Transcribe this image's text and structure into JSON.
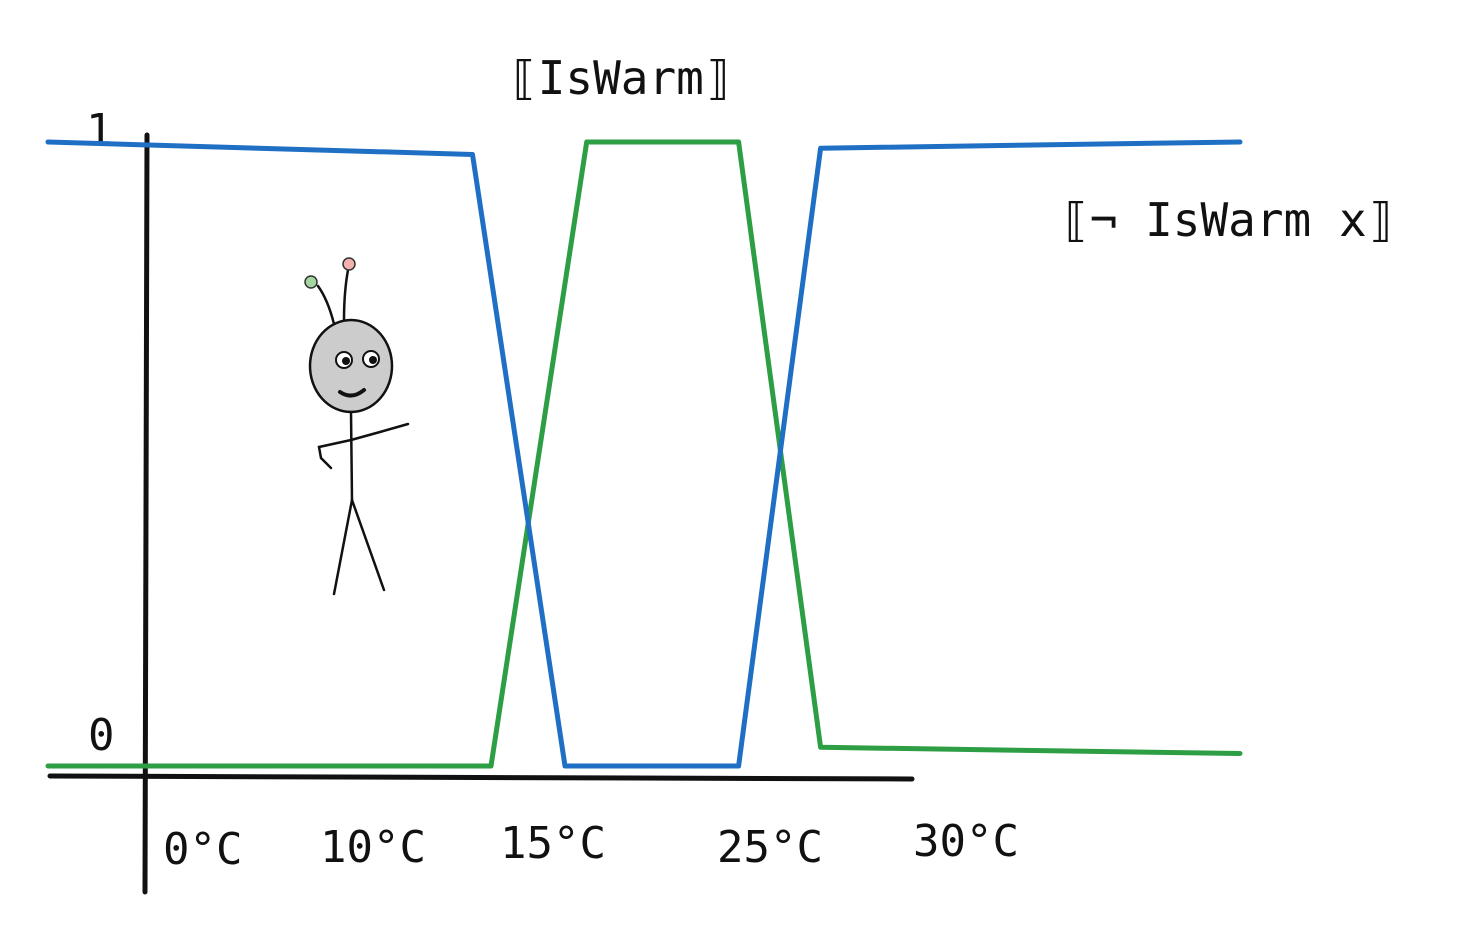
{
  "chart_data": {
    "type": "line",
    "title": "",
    "xlabel": "",
    "ylabel": "",
    "ylim": [
      0,
      1
    ],
    "y_ticks": [
      "1",
      "0"
    ],
    "x_tick_labels": [
      "0°C",
      "10°C",
      "15°C",
      "25°C",
      "30°C"
    ],
    "series": [
      {
        "name": "⟦IsWarm⟧",
        "color": "#2e9e44",
        "points": [
          {
            "x": -2,
            "y": 0.0
          },
          {
            "x": 13,
            "y": 0.0
          },
          {
            "x": 16,
            "y": 1.0
          },
          {
            "x": 23,
            "y": 1.0
          },
          {
            "x": 26,
            "y": 0.03
          },
          {
            "x": 42,
            "y": 0.02
          }
        ]
      },
      {
        "name": "⟦¬ IsWarm x⟧",
        "color": "#1f6fc4",
        "points": [
          {
            "x": -2,
            "y": 1.0
          },
          {
            "x": 12.5,
            "y": 0.98
          },
          {
            "x": 15,
            "y": 0.0
          },
          {
            "x": 23,
            "y": 0.0
          },
          {
            "x": 26,
            "y": 0.99
          },
          {
            "x": 42,
            "y": 1.0
          }
        ]
      }
    ],
    "grid": false,
    "legend": "inline labels"
  },
  "illustration": {
    "icon": "stick-figure-alien-icon"
  }
}
